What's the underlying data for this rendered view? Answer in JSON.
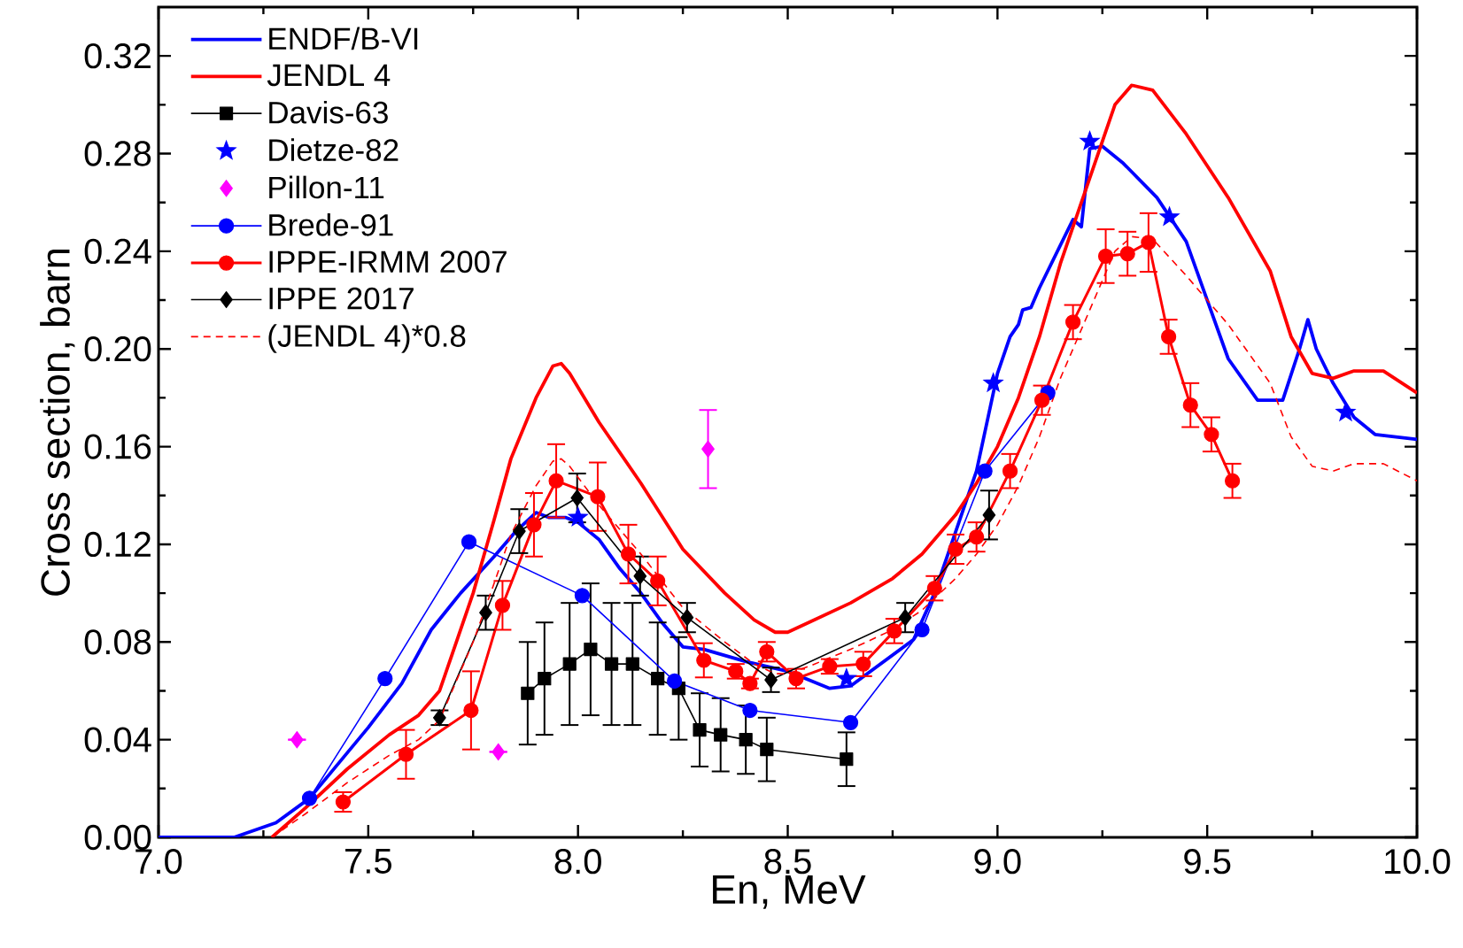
{
  "chart_data": {
    "type": "line",
    "xlabel": "En, MeV",
    "ylabel": "Cross section, barn",
    "xlim": [
      7.0,
      10.0
    ],
    "ylim": [
      0,
      0.34
    ],
    "xticks": [
      {
        "value": 7.0,
        "label": "7.0"
      },
      {
        "value": 7.5,
        "label": "7.5"
      },
      {
        "value": 8.0,
        "label": "8.0"
      },
      {
        "value": 8.5,
        "label": "8.5"
      },
      {
        "value": 9.0,
        "label": "9.0"
      },
      {
        "value": 9.5,
        "label": "9.5"
      },
      {
        "value": 10.0,
        "label": "10.0"
      }
    ],
    "yticks": [
      {
        "value": 0,
        "label": "0.00"
      },
      {
        "value": 0.04,
        "label": "0.04"
      },
      {
        "value": 0.08,
        "label": "0.08"
      },
      {
        "value": 0.12,
        "label": "0.12"
      },
      {
        "value": 0.16,
        "label": "0.16"
      },
      {
        "value": 0.2,
        "label": "0.20"
      },
      {
        "value": 0.24,
        "label": "0.24"
      },
      {
        "value": 0.28,
        "label": "0.28"
      },
      {
        "value": 0.32,
        "label": "0.32"
      }
    ],
    "legend": "top left",
    "series": [
      {
        "name": "ENDF/B-VI",
        "color": "#0000ff",
        "marker": "none",
        "line_style": "solid",
        "x": [
          7.0,
          7.18,
          7.28,
          7.36,
          7.5,
          7.58,
          7.65,
          7.72,
          7.8,
          7.85,
          7.9,
          7.93,
          7.97,
          8.0,
          8.05,
          8.1,
          8.15,
          8.2,
          8.25,
          8.3,
          8.4,
          8.45,
          8.5,
          8.6,
          8.65,
          8.8,
          8.85,
          8.9,
          8.95,
          9.0,
          9.03,
          9.05,
          9.06,
          9.08,
          9.1,
          9.18,
          9.2,
          9.22,
          9.25,
          9.3,
          9.38,
          9.45,
          9.5,
          9.55,
          9.62,
          9.68,
          9.72,
          9.74,
          9.76,
          9.8,
          9.85,
          9.9,
          10.0
        ],
        "values": [
          0,
          0,
          0.006,
          0.016,
          0.045,
          0.063,
          0.085,
          0.1,
          0.115,
          0.125,
          0.133,
          0.131,
          0.131,
          0.129,
          0.122,
          0.11,
          0.1,
          0.088,
          0.078,
          0.077,
          0.072,
          0.07,
          0.068,
          0.061,
          0.062,
          0.081,
          0.1,
          0.125,
          0.15,
          0.19,
          0.205,
          0.21,
          0.216,
          0.217,
          0.225,
          0.253,
          0.25,
          0.282,
          0.283,
          0.276,
          0.262,
          0.244,
          0.22,
          0.196,
          0.179,
          0.179,
          0.2,
          0.212,
          0.2,
          0.186,
          0.172,
          0.165,
          0.163
        ]
      },
      {
        "name": "JENDL 4",
        "color": "#ff0000",
        "marker": "none",
        "line_style": "solid",
        "x": [
          7.27,
          7.35,
          7.45,
          7.55,
          7.62,
          7.67,
          7.7,
          7.75,
          7.8,
          7.84,
          7.9,
          7.94,
          7.96,
          7.98,
          8.05,
          8.15,
          8.25,
          8.35,
          8.42,
          8.47,
          8.5,
          8.55,
          8.65,
          8.75,
          8.82,
          8.9,
          8.95,
          9.0,
          9.05,
          9.1,
          9.15,
          9.22,
          9.28,
          9.32,
          9.37,
          9.45,
          9.55,
          9.65,
          9.7,
          9.75,
          9.8,
          9.85,
          9.92,
          10.0
        ],
        "values": [
          0,
          0.012,
          0.028,
          0.042,
          0.05,
          0.06,
          0.075,
          0.1,
          0.13,
          0.155,
          0.18,
          0.193,
          0.194,
          0.19,
          0.17,
          0.145,
          0.118,
          0.1,
          0.089,
          0.084,
          0.084,
          0.088,
          0.096,
          0.106,
          0.116,
          0.132,
          0.145,
          0.16,
          0.18,
          0.205,
          0.235,
          0.27,
          0.3,
          0.308,
          0.306,
          0.288,
          0.262,
          0.232,
          0.205,
          0.19,
          0.188,
          0.191,
          0.191,
          0.182
        ]
      },
      {
        "name": "Davis-63",
        "color": "#000000",
        "marker": "square",
        "line_style": "solid",
        "x": [
          7.88,
          7.92,
          7.98,
          8.03,
          8.08,
          8.13,
          8.19,
          8.24,
          8.29,
          8.34,
          8.4,
          8.45,
          8.64
        ],
        "values": [
          0.059,
          0.065,
          0.071,
          0.077,
          0.071,
          0.071,
          0.065,
          0.061,
          0.044,
          0.042,
          0.04,
          0.036,
          0.032
        ],
        "errors": [
          0.021,
          0.023,
          0.025,
          0.027,
          0.025,
          0.025,
          0.023,
          0.021,
          0.015,
          0.015,
          0.014,
          0.013,
          0.011
        ]
      },
      {
        "name": "Dietze-82",
        "type": "scatter",
        "color": "#0000ff",
        "marker": "star",
        "x": [
          8.0,
          8.64,
          8.99,
          9.22,
          9.41,
          9.83
        ],
        "values": [
          0.131,
          0.065,
          0.186,
          0.285,
          0.254,
          0.174
        ]
      },
      {
        "name": "Pillon-11",
        "type": "scatter",
        "color": "#ff00ff",
        "marker": "diamond",
        "x": [
          7.33,
          7.81,
          8.31
        ],
        "values": [
          0.04,
          0.035,
          0.159
        ],
        "errors": [
          null,
          null,
          0.016
        ]
      },
      {
        "name": "Brede-91",
        "color": "#0000ff",
        "marker": "circle",
        "line_style": "solid",
        "x": [
          7.36,
          7.54,
          7.74,
          8.01,
          8.23,
          8.41,
          8.65,
          8.82,
          8.97,
          9.12
        ],
        "values": [
          0.016,
          0.065,
          0.121,
          0.099,
          0.064,
          0.052,
          0.047,
          0.085,
          0.15,
          0.182
        ]
      },
      {
        "name": "IPPE-IRMM 2007",
        "color": "#ff0000",
        "marker": "circle",
        "line_style": "solid",
        "x": [
          7.44,
          7.59,
          7.745,
          7.82,
          7.895,
          7.948,
          8.047,
          8.12,
          8.19,
          8.3,
          8.376,
          8.41,
          8.45,
          8.52,
          8.6,
          8.68,
          8.754,
          8.85,
          8.9,
          8.95,
          9.03,
          9.106,
          9.18,
          9.258,
          9.31,
          9.36,
          9.408,
          9.46,
          9.51,
          9.56
        ],
        "values": [
          0.0145,
          0.034,
          0.052,
          0.095,
          0.128,
          0.146,
          0.1395,
          0.116,
          0.105,
          0.0725,
          0.068,
          0.063,
          0.076,
          0.065,
          0.07,
          0.071,
          0.0845,
          0.102,
          0.118,
          0.123,
          0.15,
          0.179,
          0.211,
          0.238,
          0.239,
          0.2436,
          0.205,
          0.177,
          0.165,
          0.146
        ],
        "errors": [
          0.004,
          0.01,
          0.016,
          0.01,
          0.013,
          0.015,
          0.014,
          0.012,
          0.01,
          0.007,
          0.003,
          0.002,
          0.004,
          0.004,
          0.003,
          0.005,
          0.005,
          0.005,
          0.006,
          0.006,
          0.007,
          0.006,
          0.007,
          0.011,
          0.009,
          0.012,
          0.007,
          0.009,
          0.007,
          0.007
        ]
      },
      {
        "name": "IPPE 2017",
        "color": "#000000",
        "marker": "diamond",
        "line_style": "solid",
        "x": [
          7.67,
          7.78,
          7.86,
          7.998,
          8.148,
          8.26,
          8.46,
          8.78,
          8.98
        ],
        "values": [
          0.049,
          0.092,
          0.1254,
          0.139,
          0.107,
          0.09,
          0.0645,
          0.09,
          0.132
        ],
        "errors": [
          0.003,
          0.007,
          0.009,
          0.01,
          0.008,
          0.006,
          0.005,
          0.006,
          0.01
        ]
      },
      {
        "name": "(JENDL 4)*0.8",
        "color": "#ff0000",
        "marker": "none",
        "line_style": "dashed",
        "x": [
          7.27,
          7.35,
          7.45,
          7.55,
          7.62,
          7.67,
          7.7,
          7.75,
          7.8,
          7.84,
          7.9,
          7.94,
          7.96,
          7.98,
          8.05,
          8.15,
          8.25,
          8.35,
          8.42,
          8.47,
          8.5,
          8.55,
          8.65,
          8.75,
          8.82,
          8.9,
          8.95,
          9.0,
          9.05,
          9.1,
          9.15,
          9.22,
          9.28,
          9.32,
          9.37,
          9.45,
          9.55,
          9.65,
          9.7,
          9.75,
          9.8,
          9.85,
          9.92,
          10.0
        ],
        "values": [
          0,
          0.0096,
          0.0224,
          0.0336,
          0.04,
          0.048,
          0.06,
          0.08,
          0.104,
          0.124,
          0.144,
          0.154,
          0.155,
          0.152,
          0.136,
          0.116,
          0.094,
          0.08,
          0.071,
          0.067,
          0.067,
          0.07,
          0.077,
          0.085,
          0.093,
          0.106,
          0.116,
          0.128,
          0.144,
          0.164,
          0.188,
          0.216,
          0.24,
          0.246,
          0.245,
          0.23,
          0.21,
          0.186,
          0.164,
          0.152,
          0.15,
          0.153,
          0.153,
          0.146
        ]
      }
    ]
  }
}
